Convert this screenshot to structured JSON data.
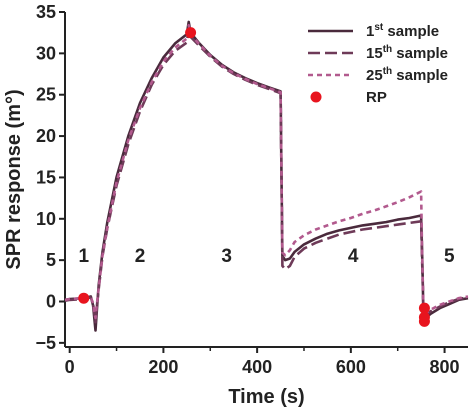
{
  "chart_data": {
    "type": "line",
    "xlabel": "Time (s)",
    "ylabel": "SPR response (m°)",
    "xlim": [
      -10,
      850
    ],
    "ylim": [
      -5.5,
      35
    ],
    "x_ticks": [
      "0",
      "200",
      "400",
      "600",
      "800"
    ],
    "x_tick_values": [
      0,
      200,
      400,
      600,
      800
    ],
    "y_ticks": [
      "−5",
      "0",
      "5",
      "10",
      "15",
      "20",
      "25",
      "30",
      "35"
    ],
    "y_tick_values": [
      -5,
      0,
      5,
      10,
      15,
      20,
      25,
      30,
      35
    ],
    "phases": [
      {
        "label": "1",
        "x": 30,
        "y": 4.8
      },
      {
        "label": "2",
        "x": 150,
        "y": 4.8
      },
      {
        "label": "3",
        "x": 335,
        "y": 4.8
      },
      {
        "label": "4",
        "x": 605,
        "y": 4.8
      },
      {
        "label": "5",
        "x": 810,
        "y": 4.8
      }
    ],
    "legend_position": "top-right",
    "legend": [
      {
        "base": "1",
        "sup": "st",
        "rest": " sample"
      },
      {
        "base": "15",
        "sup": "th",
        "rest": " sample"
      },
      {
        "base": "25",
        "sup": "th",
        "rest": " sample"
      },
      {
        "base": "RP",
        "sup": "",
        "rest": ""
      }
    ],
    "series": [
      {
        "name": "1st sample",
        "color": "#4a2a3c",
        "dash": "solid",
        "points": [
          [
            -10,
            0.2
          ],
          [
            0,
            0.3
          ],
          [
            30,
            0.4
          ],
          [
            45,
            0.6
          ],
          [
            50,
            -0.5
          ],
          [
            55,
            -3.5
          ],
          [
            58,
            -1
          ],
          [
            62,
            2
          ],
          [
            70,
            6
          ],
          [
            80,
            9.5
          ],
          [
            100,
            15
          ],
          [
            125,
            20
          ],
          [
            150,
            24
          ],
          [
            175,
            27
          ],
          [
            200,
            29.5
          ],
          [
            225,
            31.2
          ],
          [
            250,
            32.3
          ],
          [
            254,
            33.8
          ],
          [
            258,
            32.5
          ],
          [
            275,
            31.3
          ],
          [
            300,
            29.8
          ],
          [
            325,
            28.6
          ],
          [
            350,
            27.7
          ],
          [
            375,
            27.0
          ],
          [
            400,
            26.4
          ],
          [
            425,
            25.9
          ],
          [
            450,
            25.4
          ],
          [
            452,
            15
          ],
          [
            454,
            5.5
          ],
          [
            460,
            5.0
          ],
          [
            470,
            5.2
          ],
          [
            480,
            6.0
          ],
          [
            500,
            6.9
          ],
          [
            525,
            7.6
          ],
          [
            550,
            8.2
          ],
          [
            575,
            8.6
          ],
          [
            600,
            8.9
          ],
          [
            625,
            9.2
          ],
          [
            650,
            9.4
          ],
          [
            675,
            9.6
          ],
          [
            700,
            9.9
          ],
          [
            725,
            10.1
          ],
          [
            750,
            10.4
          ],
          [
            752,
            6
          ],
          [
            755,
            -1.8
          ],
          [
            760,
            -2.0
          ],
          [
            770,
            -1.5
          ],
          [
            790,
            -0.8
          ],
          [
            810,
            -0.3
          ],
          [
            830,
            0.2
          ],
          [
            850,
            0.4
          ]
        ]
      },
      {
        "name": "15th sample",
        "color": "#6e3a58",
        "dash": "12 5",
        "points": [
          [
            -10,
            0.1
          ],
          [
            0,
            0.2
          ],
          [
            30,
            0.3
          ],
          [
            45,
            0.5
          ],
          [
            50,
            -0.3
          ],
          [
            55,
            -2.5
          ],
          [
            58,
            -0.5
          ],
          [
            62,
            1.5
          ],
          [
            70,
            5.5
          ],
          [
            80,
            8.8
          ],
          [
            100,
            14
          ],
          [
            125,
            19
          ],
          [
            150,
            23
          ],
          [
            175,
            26.2
          ],
          [
            200,
            28.6
          ],
          [
            225,
            30.3
          ],
          [
            250,
            31.3
          ],
          [
            254,
            33.0
          ],
          [
            258,
            32.0
          ],
          [
            275,
            31.0
          ],
          [
            300,
            29.6
          ],
          [
            325,
            28.4
          ],
          [
            350,
            27.5
          ],
          [
            375,
            26.8
          ],
          [
            400,
            26.2
          ],
          [
            425,
            25.7
          ],
          [
            450,
            25.2
          ],
          [
            452,
            15
          ],
          [
            454,
            4.3
          ],
          [
            460,
            3.9
          ],
          [
            470,
            4.3
          ],
          [
            480,
            5.4
          ],
          [
            500,
            6.4
          ],
          [
            525,
            7.1
          ],
          [
            550,
            7.6
          ],
          [
            575,
            8.1
          ],
          [
            600,
            8.4
          ],
          [
            625,
            8.7
          ],
          [
            650,
            8.9
          ],
          [
            675,
            9.1
          ],
          [
            700,
            9.3
          ],
          [
            725,
            9.5
          ],
          [
            750,
            9.7
          ],
          [
            752,
            5
          ],
          [
            755,
            -1.5
          ],
          [
            760,
            -1.7
          ],
          [
            770,
            -1.2
          ],
          [
            790,
            -0.6
          ],
          [
            810,
            -0.1
          ],
          [
            830,
            0.3
          ],
          [
            850,
            0.5
          ]
        ]
      },
      {
        "name": "25th sample",
        "color": "#b25a8e",
        "dash": "5 4",
        "points": [
          [
            -10,
            0.2
          ],
          [
            0,
            0.3
          ],
          [
            30,
            0.4
          ],
          [
            45,
            0.5
          ],
          [
            50,
            -0.2
          ],
          [
            55,
            -2.0
          ],
          [
            58,
            -0.3
          ],
          [
            62,
            1.6
          ],
          [
            70,
            5.6
          ],
          [
            80,
            8.9
          ],
          [
            100,
            14.4
          ],
          [
            125,
            19.5
          ],
          [
            150,
            23.4
          ],
          [
            175,
            26.5
          ],
          [
            200,
            29.0
          ],
          [
            225,
            30.7
          ],
          [
            250,
            31.8
          ],
          [
            254,
            33.4
          ],
          [
            258,
            32.3
          ],
          [
            275,
            31.2
          ],
          [
            300,
            29.7
          ],
          [
            325,
            28.5
          ],
          [
            350,
            27.6
          ],
          [
            375,
            26.9
          ],
          [
            400,
            26.3
          ],
          [
            425,
            25.8
          ],
          [
            450,
            25.3
          ],
          [
            452,
            15
          ],
          [
            454,
            5.9
          ],
          [
            460,
            5.6
          ],
          [
            470,
            6.2
          ],
          [
            480,
            7.2
          ],
          [
            500,
            8.0
          ],
          [
            525,
            8.7
          ],
          [
            550,
            9.2
          ],
          [
            575,
            9.7
          ],
          [
            600,
            10.1
          ],
          [
            625,
            10.6
          ],
          [
            650,
            11.0
          ],
          [
            675,
            11.5
          ],
          [
            700,
            12.0
          ],
          [
            725,
            12.6
          ],
          [
            750,
            13.3
          ],
          [
            752,
            6
          ],
          [
            755,
            -1.2
          ],
          [
            760,
            -1.4
          ],
          [
            770,
            -1.0
          ],
          [
            790,
            -0.4
          ],
          [
            810,
            0.0
          ],
          [
            830,
            0.4
          ],
          [
            850,
            0.6
          ]
        ]
      }
    ],
    "rp_points": [
      {
        "x": 30,
        "y": 0.4
      },
      {
        "x": 258,
        "y": 32.5
      },
      {
        "x": 757,
        "y": -0.8
      },
      {
        "x": 757,
        "y": -1.9
      },
      {
        "x": 757,
        "y": -2.4
      }
    ],
    "rp_color": "#e8141e"
  }
}
